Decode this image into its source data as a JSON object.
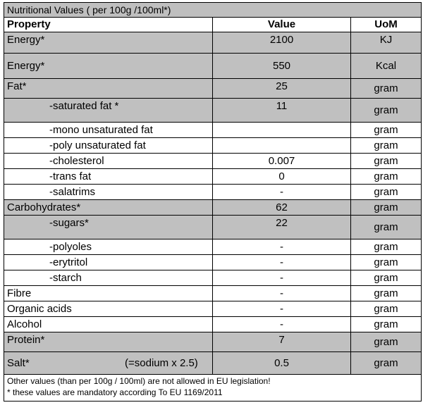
{
  "table": {
    "title": "Nutritional Values ( per 100g /100ml*)",
    "headers": {
      "property": "Property",
      "value": "Value",
      "uom": "UoM"
    },
    "rows": [
      {
        "property": "Energy*",
        "value": "2100",
        "uom": "KJ"
      },
      {
        "property": "Energy*",
        "value": "550",
        "uom": "Kcal"
      },
      {
        "property": "Fat*",
        "value": "25",
        "uom": "gram"
      },
      {
        "property": "-saturated fat *",
        "value": "11",
        "uom": "gram"
      },
      {
        "property": "-mono unsaturated fat",
        "value": "",
        "uom": "gram"
      },
      {
        "property": "-poly unsaturated fat",
        "value": "",
        "uom": "gram"
      },
      {
        "property": "-cholesterol",
        "value": "0.007",
        "uom": "gram"
      },
      {
        "property": "-trans fat",
        "value": "0",
        "uom": "gram"
      },
      {
        "property": "-salatrims",
        "value": "-",
        "uom": "gram"
      },
      {
        "property": "Carbohydrates*",
        "value": "62",
        "uom": "gram"
      },
      {
        "property": "-sugars*",
        "value": "22",
        "uom": "gram"
      },
      {
        "property": "-polyoles",
        "value": "-",
        "uom": "gram"
      },
      {
        "property": "-erytritol",
        "value": "-",
        "uom": "gram"
      },
      {
        "property": "-starch",
        "value": "-",
        "uom": "gram"
      },
      {
        "property": "Fibre",
        "value": "-",
        "uom": "gram"
      },
      {
        "property": "Organic acids",
        "value": "-",
        "uom": "gram"
      },
      {
        "property": "Alcohol",
        "value": "-",
        "uom": "gram"
      },
      {
        "property": "Protein*",
        "value": "7",
        "uom": "gram"
      },
      {
        "property": "Salt*",
        "note": "(=sodium x 2.5)",
        "value": "0.5",
        "uom": "gram"
      }
    ],
    "footnotes": [
      "Other values  (than  per 100g / 100ml) are not allowed in EU legislation!",
      "* these values are mandatory according To EU 1169/2011"
    ]
  },
  "colors": {
    "shaded_row": "#c0c0c0",
    "title_bar": "#bfbfbf",
    "border": "#000000"
  }
}
